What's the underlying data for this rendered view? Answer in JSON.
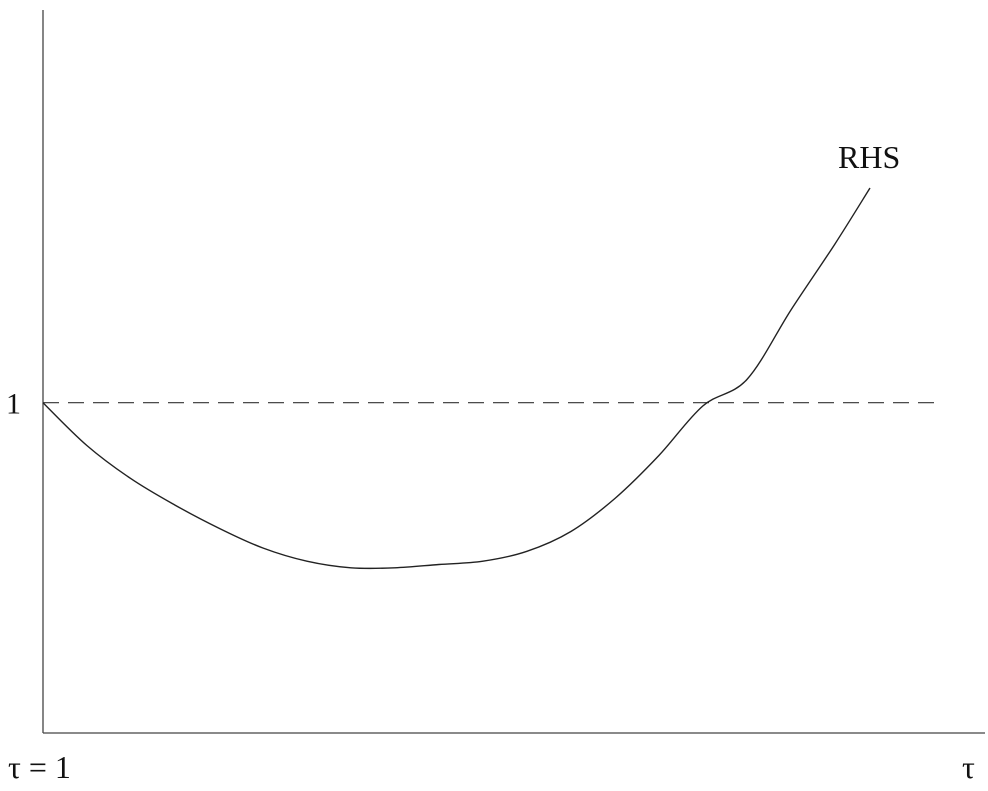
{
  "chart_data": {
    "type": "line",
    "title": "",
    "xlabel": "τ",
    "ylabel": "",
    "x_tick_labels": [
      "τ = 1"
    ],
    "y_tick_labels": [
      "1"
    ],
    "xlim": [
      0,
      1
    ],
    "ylim": [
      0,
      1.65
    ],
    "grid": false,
    "series": [
      {
        "name": "RHS",
        "style": "solid",
        "color": "#222222",
        "x": [
          0,
          0.05,
          0.1,
          0.15,
          0.2,
          0.25,
          0.3,
          0.35,
          0.4,
          0.45,
          0.5,
          0.55,
          0.6,
          0.65,
          0.7,
          0.75,
          0.8,
          0.85,
          0.9,
          0.94
        ],
        "y": [
          1.0,
          0.87,
          0.77,
          0.69,
          0.62,
          0.56,
          0.52,
          0.5,
          0.5,
          0.51,
          0.52,
          0.55,
          0.61,
          0.71,
          0.84,
          0.99,
          1.07,
          1.28,
          1.48,
          1.65
        ]
      }
    ],
    "reference_lines": [
      {
        "type": "horizontal",
        "y": 1,
        "style": "dashed",
        "color": "#222222"
      }
    ]
  }
}
